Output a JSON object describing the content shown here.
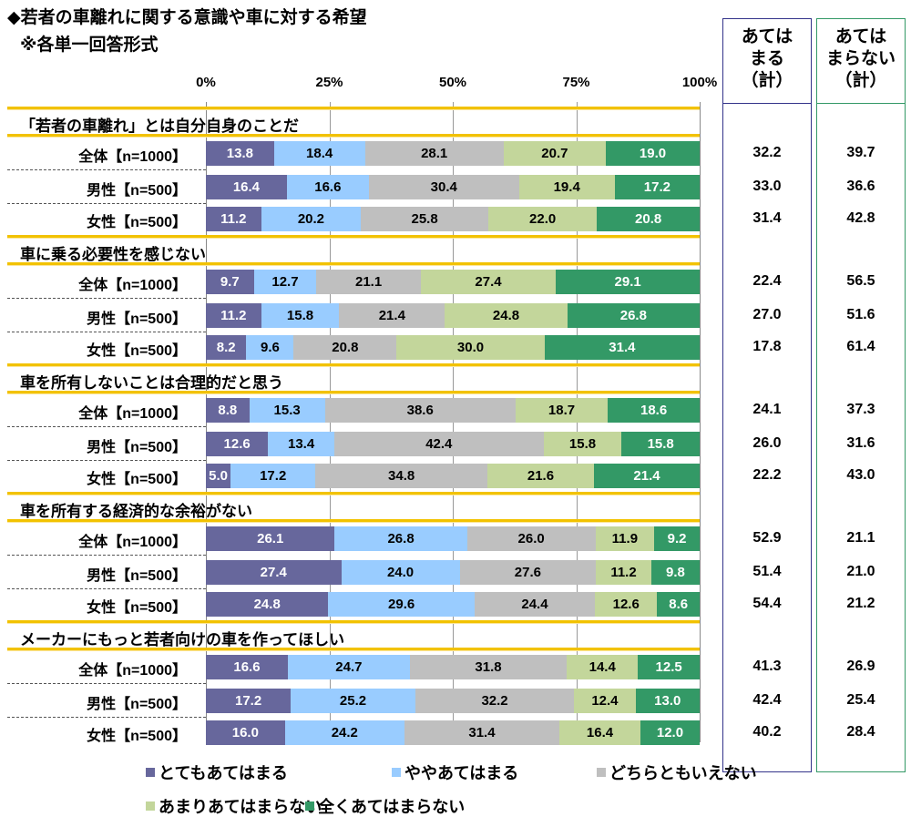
{
  "chart_data": {
    "type": "bar",
    "stacked": true,
    "orientation": "horizontal",
    "title": "◆若者の車離れに関する意識や車に対する希望",
    "subtitle": "※各単一回答形式",
    "xlim": [
      0,
      100
    ],
    "ticks": [
      "0%",
      "25%",
      "50%",
      "75%",
      "100%"
    ],
    "series": [
      {
        "name": "とてもあてはまる",
        "color": "#67679c",
        "text": "#ffffff"
      },
      {
        "name": "ややあてはまる",
        "color": "#99ccff",
        "text": "#000000"
      },
      {
        "name": "どちらともいえない",
        "color": "#bfbfbf",
        "text": "#000000"
      },
      {
        "name": "あまりあてはまらない",
        "color": "#c3d69b",
        "text": "#000000"
      },
      {
        "name": "全くあてはまらない",
        "color": "#339966",
        "text": "#ffffff"
      }
    ],
    "summary_headers": [
      "あてはまる（計）",
      "あてはまらない（計）"
    ],
    "summary_header_lines": [
      [
        "あては",
        "まる",
        "（計）"
      ],
      [
        "あては",
        "まらない",
        "（計）"
      ]
    ],
    "legend_position": "bottom",
    "groups": [
      {
        "question": "「若者の車離れ」とは自分自身のことだ",
        "rows": [
          {
            "label": "全体【n=1000】",
            "values": [
              13.8,
              18.4,
              28.1,
              20.7,
              19.0
            ],
            "labels": [
              "13.8",
              "18.4",
              "28.1",
              "20.7",
              "19.0"
            ],
            "apply": "32.2",
            "not_apply": "39.7"
          },
          {
            "label": "男性【n=500】",
            "values": [
              16.4,
              16.6,
              30.4,
              19.4,
              17.2
            ],
            "labels": [
              "16.4",
              "16.6",
              "30.4",
              "19.4",
              "17.2"
            ],
            "apply": "33.0",
            "not_apply": "36.6"
          },
          {
            "label": "女性【n=500】",
            "values": [
              11.2,
              20.2,
              25.8,
              22.0,
              20.8
            ],
            "labels": [
              "11.2",
              "20.2",
              "25.8",
              "22.0",
              "20.8"
            ],
            "apply": "31.4",
            "not_apply": "42.8"
          }
        ]
      },
      {
        "question": "車に乗る必要性を感じない",
        "rows": [
          {
            "label": "全体【n=1000】",
            "values": [
              9.7,
              12.7,
              21.1,
              27.4,
              29.1
            ],
            "labels": [
              "9.7",
              "12.7",
              "21.1",
              "27.4",
              "29.1"
            ],
            "apply": "22.4",
            "not_apply": "56.5"
          },
          {
            "label": "男性【n=500】",
            "values": [
              11.2,
              15.8,
              21.4,
              24.8,
              26.8
            ],
            "labels": [
              "11.2",
              "15.8",
              "21.4",
              "24.8",
              "26.8"
            ],
            "apply": "27.0",
            "not_apply": "51.6"
          },
          {
            "label": "女性【n=500】",
            "values": [
              8.2,
              9.6,
              20.8,
              30.0,
              31.4
            ],
            "labels": [
              "8.2",
              "9.6",
              "20.8",
              "30.0",
              "31.4"
            ],
            "apply": "17.8",
            "not_apply": "61.4"
          }
        ]
      },
      {
        "question": "車を所有しないことは合理的だと思う",
        "rows": [
          {
            "label": "全体【n=1000】",
            "values": [
              8.8,
              15.3,
              38.6,
              18.7,
              18.6
            ],
            "labels": [
              "8.8",
              "15.3",
              "38.6",
              "18.7",
              "18.6"
            ],
            "apply": "24.1",
            "not_apply": "37.3"
          },
          {
            "label": "男性【n=500】",
            "values": [
              12.6,
              13.4,
              42.4,
              15.8,
              15.8
            ],
            "labels": [
              "12.6",
              "13.4",
              "42.4",
              "15.8",
              "15.8"
            ],
            "apply": "26.0",
            "not_apply": "31.6"
          },
          {
            "label": "女性【n=500】",
            "values": [
              5.0,
              17.2,
              34.8,
              21.6,
              21.4
            ],
            "labels": [
              "5.0",
              "17.2",
              "34.8",
              "21.6",
              "21.4"
            ],
            "apply": "22.2",
            "not_apply": "43.0"
          }
        ]
      },
      {
        "question": "車を所有する経済的な余裕がない",
        "rows": [
          {
            "label": "全体【n=1000】",
            "values": [
              26.1,
              26.8,
              26.0,
              11.9,
              9.2
            ],
            "labels": [
              "26.1",
              "26.8",
              "26.0",
              "11.9",
              "9.2"
            ],
            "apply": "52.9",
            "not_apply": "21.1"
          },
          {
            "label": "男性【n=500】",
            "values": [
              27.4,
              24.0,
              27.6,
              11.2,
              9.8
            ],
            "labels": [
              "27.4",
              "24.0",
              "27.6",
              "11.2",
              "9.8"
            ],
            "apply": "51.4",
            "not_apply": "21.0"
          },
          {
            "label": "女性【n=500】",
            "values": [
              24.8,
              29.6,
              24.4,
              12.6,
              8.6
            ],
            "labels": [
              "24.8",
              "29.6",
              "24.4",
              "12.6",
              "8.6"
            ],
            "apply": "54.4",
            "not_apply": "21.2"
          }
        ]
      },
      {
        "question": "メーカーにもっと若者向けの車を作ってほしい",
        "rows": [
          {
            "label": "全体【n=1000】",
            "values": [
              16.6,
              24.7,
              31.8,
              14.4,
              12.5
            ],
            "labels": [
              "16.6",
              "24.7",
              "31.8",
              "14.4",
              "12.5"
            ],
            "apply": "41.3",
            "not_apply": "26.9"
          },
          {
            "label": "男性【n=500】",
            "values": [
              17.2,
              25.2,
              32.2,
              12.4,
              13.0
            ],
            "labels": [
              "17.2",
              "25.2",
              "32.2",
              "12.4",
              "13.0"
            ],
            "apply": "42.4",
            "not_apply": "25.4"
          },
          {
            "label": "女性【n=500】",
            "values": [
              16.0,
              24.2,
              31.4,
              16.4,
              12.0
            ],
            "labels": [
              "16.0",
              "24.2",
              "31.4",
              "16.4",
              "12.0"
            ],
            "apply": "40.2",
            "not_apply": "28.4"
          }
        ]
      }
    ]
  }
}
